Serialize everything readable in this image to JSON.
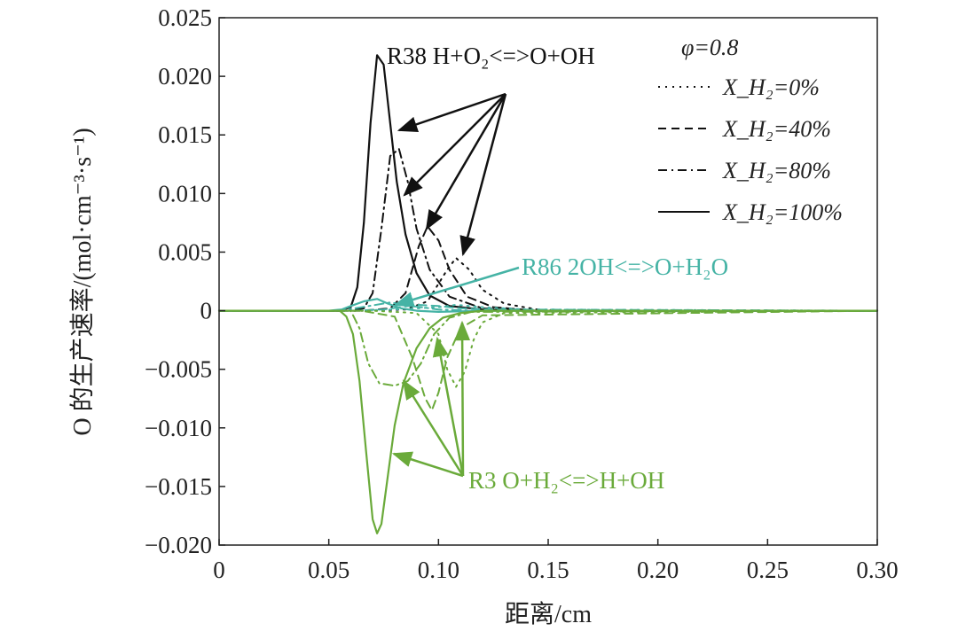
{
  "chart_data": {
    "type": "line",
    "title": "",
    "xlabel": "距离/cm",
    "ylabel": "O 的生产速率/(mol·cm⁻³·s⁻¹)",
    "xlim": [
      0,
      0.3
    ],
    "ylim": [
      -0.02,
      0.025
    ],
    "x_ticks": [
      0,
      0.05,
      0.1,
      0.15,
      0.2,
      0.25,
      0.3
    ],
    "x_tick_labels": [
      "0",
      "0.05",
      "0.10",
      "0.15",
      "0.20",
      "0.25",
      "0.30"
    ],
    "y_ticks": [
      -0.02,
      -0.015,
      -0.01,
      -0.005,
      0,
      0.005,
      0.01,
      0.015,
      0.02,
      0.025
    ],
    "y_tick_labels": [
      "−0.020",
      "−0.015",
      "−0.010",
      "−0.005",
      "0",
      "0.005",
      "0.010",
      "0.015",
      "0.020",
      "0.025"
    ],
    "grid": false,
    "legend_position": "top-right",
    "condition_label": "φ=0.8",
    "legend": [
      {
        "label": "X_H₂=0%",
        "style": "dotted"
      },
      {
        "label": "X_H₂=40%",
        "style": "dashed"
      },
      {
        "label": "X_H₂=80%",
        "style": "dashdot"
      },
      {
        "label": "X_H₂=100%",
        "style": "solid"
      }
    ],
    "annotations": {
      "r38": "R38 H+O₂<=>O+OH",
      "r86": "R86 2OH<=>O+H₂O",
      "r3": "R3 O+H₂<=>H+OH"
    },
    "colors": {
      "r38": "#111111",
      "r86": "#45b3a5",
      "r3": "#6aaa3a"
    },
    "series": [
      {
        "reaction": "R38",
        "h2": "0%",
        "style": "dotted",
        "x": [
          0,
          0.07,
          0.085,
          0.095,
          0.104,
          0.108,
          0.114,
          0.12,
          0.13,
          0.145,
          0.16,
          0.3
        ],
        "y": [
          0,
          0,
          0.0001,
          0.0008,
          0.0035,
          0.0045,
          0.0035,
          0.0018,
          0.0006,
          0.0001,
          0,
          0
        ]
      },
      {
        "reaction": "R38",
        "h2": "40%",
        "style": "dashed",
        "x": [
          0,
          0.065,
          0.078,
          0.085,
          0.091,
          0.095,
          0.1,
          0.105,
          0.113,
          0.125,
          0.145,
          0.3
        ],
        "y": [
          0,
          0,
          0.0002,
          0.0015,
          0.0055,
          0.0072,
          0.006,
          0.0035,
          0.0012,
          0.0003,
          0,
          0
        ]
      },
      {
        "reaction": "R38",
        "h2": "80%",
        "style": "dashdot",
        "x": [
          0,
          0.06,
          0.066,
          0.07,
          0.074,
          0.078,
          0.082,
          0.086,
          0.09,
          0.096,
          0.105,
          0.12,
          0.14,
          0.3
        ],
        "y": [
          0,
          0,
          0.0002,
          0.0015,
          0.007,
          0.0132,
          0.0138,
          0.011,
          0.007,
          0.0035,
          0.0012,
          0.0002,
          0,
          0
        ]
      },
      {
        "reaction": "R38",
        "h2": "100%",
        "style": "solid",
        "x": [
          0,
          0.055,
          0.06,
          0.063,
          0.066,
          0.069,
          0.072,
          0.075,
          0.078,
          0.081,
          0.085,
          0.09,
          0.096,
          0.105,
          0.12,
          0.14,
          0.3
        ],
        "y": [
          0,
          0,
          0.0003,
          0.002,
          0.0075,
          0.016,
          0.0218,
          0.021,
          0.016,
          0.011,
          0.0065,
          0.0032,
          0.0013,
          0.0004,
          0.0001,
          0,
          0
        ]
      },
      {
        "reaction": "R86",
        "h2": "0%",
        "style": "dotted",
        "x": [
          0,
          0.06,
          0.08,
          0.1,
          0.108,
          0.12,
          0.14,
          0.3
        ],
        "y": [
          0,
          0,
          0.0001,
          0.0003,
          0.0005,
          0.0003,
          0.0001,
          0
        ]
      },
      {
        "reaction": "R86",
        "h2": "40%",
        "style": "dashed",
        "x": [
          0,
          0.06,
          0.075,
          0.09,
          0.1,
          0.11,
          0.125,
          0.3
        ],
        "y": [
          0,
          0,
          0.0001,
          0.0005,
          0.0004,
          0.0002,
          0.0001,
          0
        ]
      },
      {
        "reaction": "R86",
        "h2": "80%",
        "style": "dashdot",
        "x": [
          0,
          0.055,
          0.065,
          0.078,
          0.088,
          0.1,
          0.115,
          0.3
        ],
        "y": [
          0,
          0,
          0.0003,
          0.0007,
          0.0004,
          0.0001,
          0,
          0
        ]
      },
      {
        "reaction": "R86",
        "h2": "100%",
        "style": "solid",
        "x": [
          0,
          0.05,
          0.056,
          0.06,
          0.066,
          0.072,
          0.077,
          0.083,
          0.09,
          0.1,
          0.12,
          0.3
        ],
        "y": [
          0,
          0,
          0.0001,
          0.0004,
          0.0008,
          0.001,
          0.0006,
          0.0002,
          0,
          -0.0001,
          0,
          0
        ]
      },
      {
        "reaction": "R3",
        "h2": "0%",
        "style": "dotted",
        "x": [
          0,
          0.07,
          0.09,
          0.1,
          0.104,
          0.108,
          0.112,
          0.116,
          0.12,
          0.13,
          0.3
        ],
        "y": [
          0,
          0,
          -0.0002,
          -0.002,
          -0.005,
          -0.0065,
          -0.0052,
          -0.0025,
          -0.001,
          -0.0002,
          0
        ]
      },
      {
        "reaction": "R3",
        "h2": "40%",
        "style": "dashed",
        "x": [
          0,
          0.065,
          0.08,
          0.088,
          0.094,
          0.097,
          0.1,
          0.104,
          0.11,
          0.12,
          0.3
        ],
        "y": [
          0,
          0,
          -0.0005,
          -0.004,
          -0.0075,
          -0.0085,
          -0.007,
          -0.004,
          -0.0015,
          -0.0004,
          0
        ]
      },
      {
        "reaction": "R3",
        "h2": "80%",
        "style": "dashdot",
        "x": [
          0,
          0.06,
          0.064,
          0.068,
          0.073,
          0.08,
          0.086,
          0.092,
          0.098,
          0.105,
          0.115,
          0.3
        ],
        "y": [
          0,
          0,
          -0.0015,
          -0.0045,
          -0.0062,
          -0.0064,
          -0.006,
          -0.0045,
          -0.002,
          -0.0006,
          -0.0001,
          0
        ]
      },
      {
        "reaction": "R3",
        "h2": "100%",
        "style": "solid",
        "x": [
          0,
          0.055,
          0.058,
          0.061,
          0.064,
          0.067,
          0.07,
          0.072,
          0.074,
          0.077,
          0.08,
          0.084,
          0.09,
          0.096,
          0.102,
          0.11,
          0.12,
          0.3
        ],
        "y": [
          0,
          0,
          -0.0005,
          -0.002,
          -0.006,
          -0.012,
          -0.0178,
          -0.019,
          -0.0182,
          -0.014,
          -0.0098,
          -0.0062,
          -0.0032,
          -0.0015,
          -0.0006,
          -0.0002,
          0,
          0
        ]
      }
    ]
  }
}
